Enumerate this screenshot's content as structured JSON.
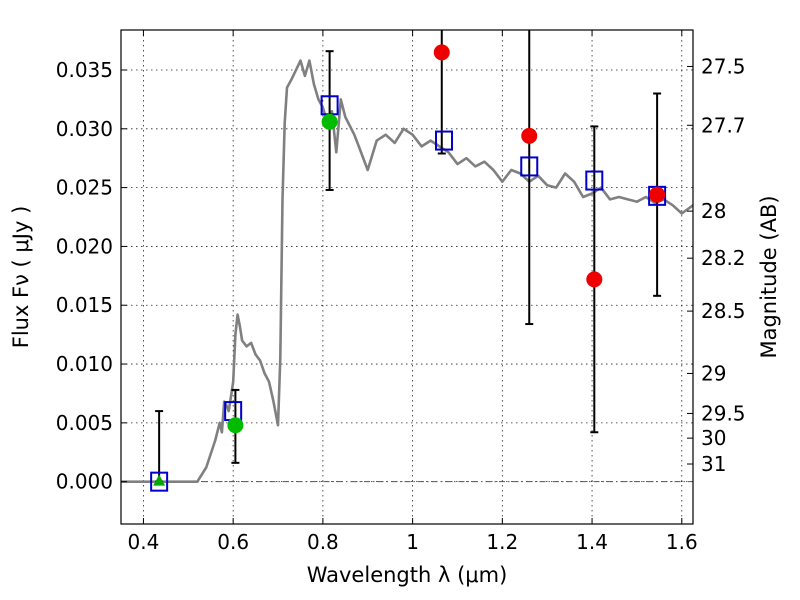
{
  "chart_data": {
    "type": "scatter",
    "title": "",
    "xlabel": "Wavelength  λ (μm)",
    "ylabel": "Flux  Fν  ( μJy )",
    "y2label": "Magnitude (AB)",
    "xlim": [
      0.35,
      1.625
    ],
    "ylim": [
      -0.0036,
      0.0384
    ],
    "xticks": [
      0.4,
      0.6,
      0.8,
      1.0,
      1.2,
      1.4,
      1.6
    ],
    "xtick_labels": [
      "0.4",
      "0.6",
      "0.8",
      "1",
      "1.2",
      "1.4",
      "1.6"
    ],
    "yticks": [
      0.0,
      0.005,
      0.01,
      0.015,
      0.02,
      0.025,
      0.03,
      0.035
    ],
    "ytick_labels": [
      "0.000",
      "0.005",
      "0.010",
      "0.015",
      "0.020",
      "0.025",
      "0.030",
      "0.035"
    ],
    "y2ticks": [
      {
        "label": "27.5",
        "flux": 0.0353
      },
      {
        "label": "27.7",
        "flux": 0.0303
      },
      {
        "label": "28",
        "flux": 0.023
      },
      {
        "label": "28.2",
        "flux": 0.019
      },
      {
        "label": "28.5",
        "flux": 0.0145
      },
      {
        "label": "29",
        "flux": 0.0092
      },
      {
        "label": "29.5",
        "flux": 0.0058
      },
      {
        "label": "30",
        "flux": 0.0037
      },
      {
        "label": "31",
        "flux": 0.0015
      }
    ],
    "grid": true,
    "zero_line": true,
    "series": [
      {
        "kind": "line",
        "color": "#808080",
        "x": [
          0.35,
          0.45,
          0.52,
          0.54,
          0.56,
          0.57,
          0.575,
          0.58,
          0.585,
          0.59,
          0.595,
          0.6,
          0.605,
          0.61,
          0.615,
          0.62,
          0.63,
          0.64,
          0.65,
          0.66,
          0.67,
          0.68,
          0.69,
          0.7,
          0.705,
          0.71,
          0.715,
          0.72,
          0.73,
          0.74,
          0.75,
          0.76,
          0.77,
          0.78,
          0.79,
          0.8,
          0.81,
          0.82,
          0.83,
          0.84,
          0.85,
          0.87,
          0.88,
          0.9,
          0.92,
          0.94,
          0.96,
          0.98,
          1.0,
          1.02,
          1.04,
          1.06,
          1.08,
          1.1,
          1.12,
          1.14,
          1.16,
          1.18,
          1.2,
          1.22,
          1.24,
          1.26,
          1.28,
          1.3,
          1.32,
          1.34,
          1.36,
          1.38,
          1.4,
          1.42,
          1.44,
          1.46,
          1.48,
          1.5,
          1.52,
          1.54,
          1.56,
          1.58,
          1.6,
          1.625
        ],
        "y": [
          0.0,
          0.0,
          0.0,
          0.0012,
          0.0035,
          0.005,
          0.0042,
          0.0068,
          0.0065,
          0.006,
          0.0072,
          0.0085,
          0.0125,
          0.0142,
          0.0132,
          0.012,
          0.0115,
          0.0118,
          0.0108,
          0.0103,
          0.0092,
          0.0085,
          0.0068,
          0.0048,
          0.0105,
          0.024,
          0.0305,
          0.0335,
          0.0342,
          0.035,
          0.0358,
          0.0345,
          0.0358,
          0.0338,
          0.0325,
          0.0318,
          0.0305,
          0.0315,
          0.028,
          0.0325,
          0.031,
          0.0295,
          0.0285,
          0.0265,
          0.029,
          0.0295,
          0.0288,
          0.03,
          0.0295,
          0.0285,
          0.029,
          0.0285,
          0.028,
          0.027,
          0.0275,
          0.0268,
          0.0272,
          0.0265,
          0.0255,
          0.0265,
          0.0262,
          0.0255,
          0.026,
          0.0252,
          0.025,
          0.0262,
          0.0255,
          0.0242,
          0.0245,
          0.025,
          0.024,
          0.0242,
          0.024,
          0.0238,
          0.0242,
          0.0237,
          0.024,
          0.0235,
          0.0228,
          0.0235
        ]
      },
      {
        "kind": "errorbar",
        "color": "#000000",
        "x": [
          0.435,
          0.605,
          0.815,
          1.065,
          1.26,
          1.405,
          1.545
        ],
        "y": [
          0.0,
          0.0048,
          0.0306,
          0.0365,
          0.0294,
          0.0172,
          0.0244
        ],
        "yerr_low": [
          0.0,
          0.0032,
          0.0058,
          0.0086,
          0.016,
          0.013,
          0.0086
        ],
        "yerr_high": [
          0.006,
          0.003,
          0.006,
          0.01,
          0.015,
          0.013,
          0.0086
        ]
      },
      {
        "kind": "square",
        "color": "#0000cc",
        "x": [
          0.435,
          0.6,
          0.815,
          1.07,
          1.26,
          1.405,
          1.545
        ],
        "y": [
          0.0,
          0.006,
          0.032,
          0.029,
          0.0268,
          0.0256,
          0.0243
        ]
      },
      {
        "kind": "triangle",
        "color": "#00aa00",
        "x": [
          0.435
        ],
        "y": [
          0.0
        ]
      },
      {
        "kind": "circle",
        "color": "#00bb00",
        "x": [
          0.605,
          0.815
        ],
        "y": [
          0.0048,
          0.0306
        ]
      },
      {
        "kind": "circle",
        "color": "#ee0000",
        "x": [
          1.065,
          1.26,
          1.405,
          1.545
        ],
        "y": [
          0.0365,
          0.0294,
          0.0172,
          0.0244
        ]
      }
    ]
  }
}
